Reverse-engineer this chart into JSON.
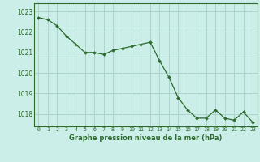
{
  "x": [
    0,
    1,
    2,
    3,
    4,
    5,
    6,
    7,
    8,
    9,
    10,
    11,
    12,
    13,
    14,
    15,
    16,
    17,
    18,
    19,
    20,
    21,
    22,
    23
  ],
  "y": [
    1022.7,
    1022.6,
    1022.3,
    1021.8,
    1021.4,
    1021.0,
    1021.0,
    1020.9,
    1021.1,
    1021.2,
    1021.3,
    1021.4,
    1021.5,
    1020.6,
    1019.8,
    1018.8,
    1018.2,
    1017.8,
    1017.8,
    1018.2,
    1017.8,
    1017.7,
    1018.1,
    1017.6
  ],
  "line_color": "#2d6a2d",
  "marker_color": "#2d6a2d",
  "background_color": "#cceee8",
  "grid_color": "#aad4cc",
  "xlabel": "Graphe pression niveau de la mer (hPa)",
  "xlabel_color": "#2d6a2d",
  "tick_color": "#2d6a2d",
  "ylim": [
    1017.4,
    1023.4
  ],
  "yticks": [
    1018,
    1019,
    1020,
    1021,
    1022,
    1023
  ],
  "xticks": [
    0,
    1,
    2,
    3,
    4,
    5,
    6,
    7,
    8,
    9,
    10,
    11,
    12,
    13,
    14,
    15,
    16,
    17,
    18,
    19,
    20,
    21,
    22,
    23
  ],
  "xtick_labels": [
    "0",
    "1",
    "2",
    "3",
    "4",
    "5",
    "6",
    "7",
    "8",
    "9",
    "10",
    "11",
    "12",
    "13",
    "14",
    "15",
    "16",
    "17",
    "18",
    "19",
    "20",
    "21",
    "22",
    "23"
  ],
  "spine_color": "#2d6a2d"
}
